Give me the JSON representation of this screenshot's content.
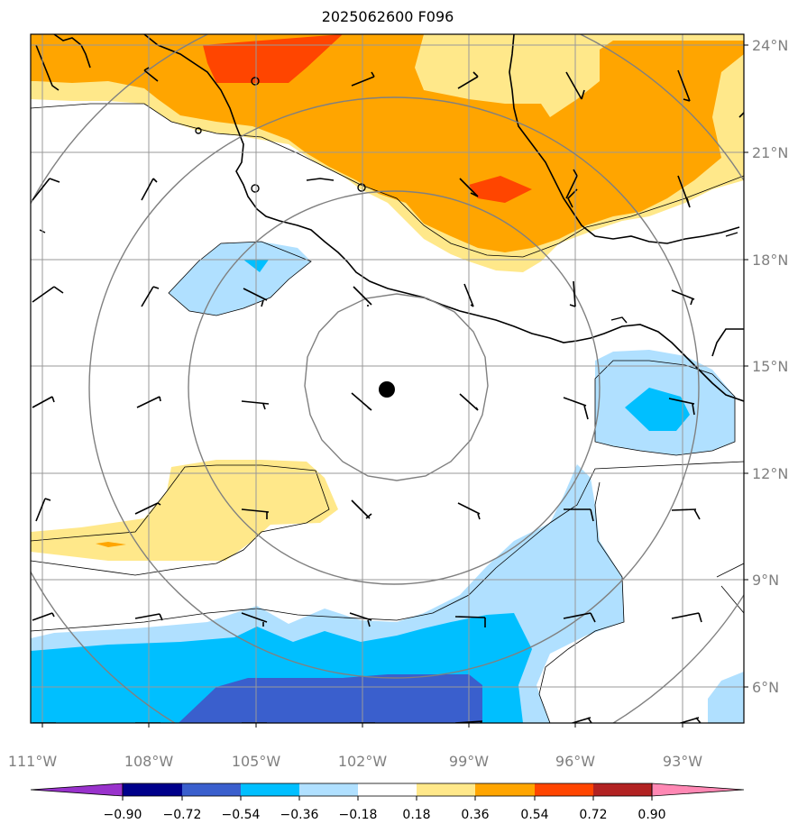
{
  "title": "2025062600 F096",
  "lat_labels": [
    "24°N",
    "21°N",
    "18°N",
    "15°N",
    "12°N",
    "9°N",
    "6°N"
  ],
  "lon_labels": [
    "111°W",
    "108°W",
    "105°W",
    "102°W",
    "99°W",
    "96°W",
    "93°W"
  ],
  "colorbar": {
    "ticks": [
      "−0.90",
      "−0.72",
      "−0.54",
      "−0.36",
      "−0.18",
      "0.18",
      "0.36",
      "0.54",
      "0.72",
      "0.90"
    ],
    "colors": [
      "#9932cc",
      "#00008b",
      "#3a5fcd",
      "#00bfff",
      "#b0e0ff",
      "#ffffff",
      "#ffe88a",
      "#ffa500",
      "#ff4500",
      "#b22222",
      "#ff88b4"
    ]
  },
  "storm_center": {
    "lat": 14.6,
    "lon": -101.3
  },
  "colors": {
    "grid": "#999999",
    "range_rings": "#808080",
    "coast": "#000000",
    "storm_marker": "#000000"
  }
}
